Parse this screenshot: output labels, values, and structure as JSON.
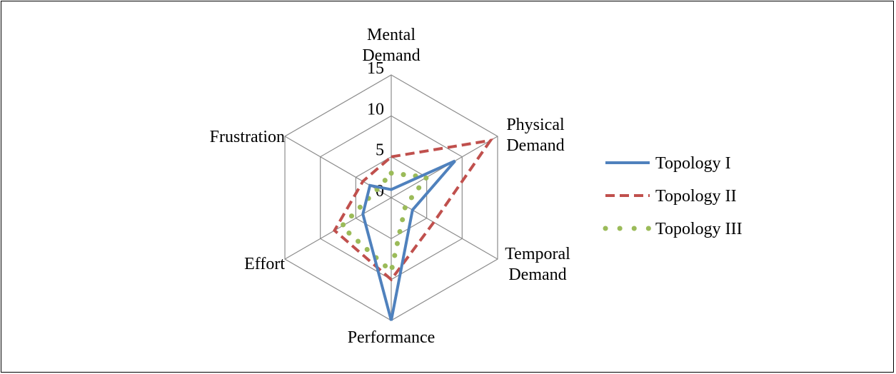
{
  "chart_data": {
    "type": "radar",
    "axes": [
      [
        "Mental",
        "Demand"
      ],
      [
        "Physical",
        "Demand"
      ],
      [
        "Temporal",
        "Demand"
      ],
      [
        "Performance"
      ],
      [
        "Effort"
      ],
      [
        "Frustration"
      ]
    ],
    "r_ticks": [
      "0",
      "5",
      "10",
      "15"
    ],
    "r_range": [
      0,
      15
    ],
    "grid": true,
    "legend_position": "right",
    "series": [
      {
        "name": "Topology I",
        "values": [
          1,
          9,
          3,
          15,
          4,
          3
        ],
        "color": "#4F81BD",
        "style": "solid"
      },
      {
        "name": "Topology II",
        "values": [
          5,
          14,
          6,
          10,
          8,
          4
        ],
        "color": "#C0504D",
        "style": "dashed"
      },
      {
        "name": "Topology III",
        "values": [
          3,
          5,
          2,
          9,
          7,
          2
        ],
        "color": "#9BBB59",
        "style": "dotted"
      }
    ]
  }
}
